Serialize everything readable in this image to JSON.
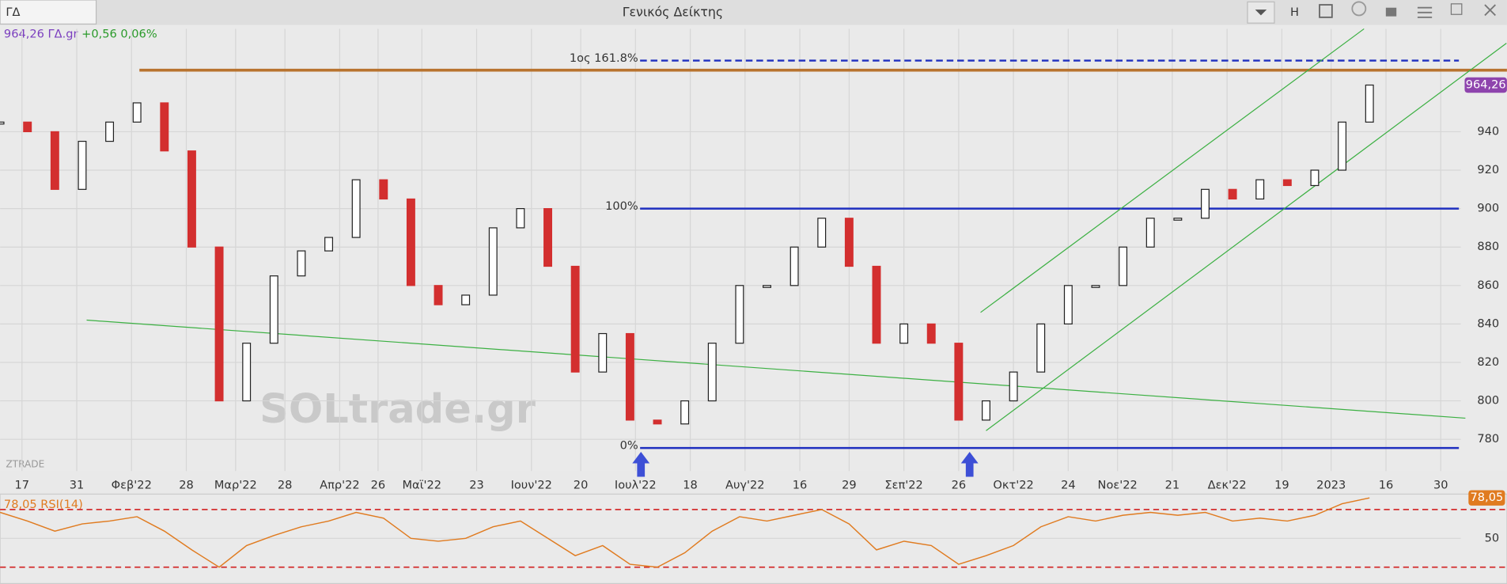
{
  "toolbar": {
    "symbol": "ΓΔ",
    "h": "H"
  },
  "watermark": "SOLtrade.gr",
  "brand": "ZTRADE",
  "chart_data": [
    {
      "type": "candlestick",
      "title": "Γενικός Δείκτης",
      "quote": {
        "name": "ΓΔ.gr",
        "change": "+0,56",
        "change_pct": "0,06%"
      },
      "x": [
        0,
        5,
        10,
        15,
        20,
        25,
        30,
        35,
        40,
        45,
        50,
        55,
        60,
        65,
        70,
        75,
        80,
        85,
        90,
        95,
        100,
        105,
        110,
        115,
        120,
        125,
        130,
        135,
        140,
        145,
        150,
        155,
        160,
        165,
        170,
        175,
        180,
        185,
        190,
        195,
        200,
        205,
        210,
        215,
        220,
        225,
        230,
        235,
        240,
        245,
        250
      ],
      "values": [
        945,
        940,
        910,
        935,
        945,
        955,
        930,
        880,
        800,
        830,
        865,
        878,
        885,
        915,
        905,
        860,
        850,
        855,
        890,
        900,
        870,
        815,
        835,
        790,
        788,
        800,
        830,
        860,
        860,
        880,
        895,
        870,
        830,
        840,
        830,
        790,
        800,
        815,
        840,
        860,
        860,
        880,
        895,
        895,
        910,
        905,
        915,
        912,
        920,
        945,
        964.26
      ],
      "value_labels": [
        null,
        null,
        null,
        null,
        null,
        null,
        null,
        null,
        null,
        null,
        null,
        null,
        null,
        null,
        null,
        null,
        null,
        null,
        null,
        null,
        null,
        null,
        null,
        null,
        null,
        null,
        null,
        null,
        null,
        null,
        null,
        null,
        null,
        null,
        null,
        null,
        null,
        null,
        null,
        null,
        null,
        null,
        null,
        null,
        null,
        null,
        null,
        null,
        null,
        null,
        "964,26"
      ],
      "up_color": "#ffffff",
      "down_color": "#d32f2f",
      "xlim": [
        0,
        275
      ],
      "ylim": [
        763.5,
        993.5
      ],
      "yticks": [
        780,
        800,
        820,
        840,
        860,
        880,
        900,
        920,
        940
      ],
      "xticks": [
        {
          "value": 4,
          "label": "17"
        },
        {
          "value": 14,
          "label": "31"
        },
        {
          "value": 24,
          "label": "Φεβ'22"
        },
        {
          "value": 34,
          "label": "28"
        },
        {
          "value": 43,
          "label": "Μαρ'22"
        },
        {
          "value": 52,
          "label": "28"
        },
        {
          "value": 62,
          "label": "Απρ'22"
        },
        {
          "value": 69,
          "label": "26"
        },
        {
          "value": 77,
          "label": "Μαϊ'22"
        },
        {
          "value": 87,
          "label": "23"
        },
        {
          "value": 97,
          "label": "Ιουν'22"
        },
        {
          "value": 106,
          "label": "20"
        },
        {
          "value": 116,
          "label": "Ιουλ'22"
        },
        {
          "value": 126,
          "label": "18"
        },
        {
          "value": 136,
          "label": "Αυγ'22"
        },
        {
          "value": 146,
          "label": "16"
        },
        {
          "value": 155,
          "label": "29"
        },
        {
          "value": 165,
          "label": "Σεπ'22"
        },
        {
          "value": 175,
          "label": "26"
        },
        {
          "value": 185,
          "label": "Οκτ'22"
        },
        {
          "value": 195,
          "label": "24"
        },
        {
          "value": 204,
          "label": "Νοε'22"
        },
        {
          "value": 214,
          "label": "21"
        },
        {
          "value": 224,
          "label": "Δεκ'22"
        },
        {
          "value": 234,
          "label": "19"
        },
        {
          "value": 243,
          "label": "2023"
        },
        {
          "value": 253,
          "label": "16"
        },
        {
          "value": 263,
          "label": "30"
        }
      ],
      "grid": true,
      "levels": [
        {
          "label": "1ος 161.8%",
          "value": 977,
          "style": "dashed"
        },
        {
          "label": "100%",
          "value": 900,
          "style": "solid"
        },
        {
          "label": "0%",
          "value": 775.5,
          "style": "solid"
        }
      ],
      "level_color": "#1f2fbf",
      "resistance": {
        "value": 972,
        "color": "#b8732f"
      },
      "trendlines": [
        {
          "x": [
            15.8,
            267.5
          ],
          "y": [
            842,
            791
          ]
        },
        {
          "x": [
            179,
            249
          ],
          "y": [
            846,
            993.5
          ]
        },
        {
          "x": [
            180,
            275
          ],
          "y": [
            784.5,
            986
          ]
        }
      ],
      "trend_color": "#3cb043",
      "arrows": [
        117,
        177
      ]
    },
    {
      "type": "line",
      "name": "RSI(14)",
      "x": [
        0,
        5,
        10,
        15,
        20,
        25,
        30,
        35,
        40,
        45,
        50,
        55,
        60,
        65,
        70,
        75,
        80,
        85,
        90,
        95,
        100,
        105,
        110,
        115,
        120,
        125,
        130,
        135,
        140,
        145,
        150,
        155,
        160,
        165,
        170,
        175,
        180,
        185,
        190,
        195,
        200,
        205,
        210,
        215,
        220,
        225,
        230,
        235,
        240,
        245,
        250
      ],
      "values": [
        68,
        62,
        55,
        60,
        62,
        65,
        55,
        42,
        30,
        45,
        52,
        58,
        62,
        68,
        64,
        50,
        48,
        50,
        58,
        62,
        50,
        38,
        45,
        32,
        30,
        40,
        55,
        65,
        62,
        66,
        70,
        60,
        42,
        48,
        45,
        32,
        38,
        45,
        58,
        65,
        62,
        66,
        68,
        66,
        68,
        62,
        64,
        62,
        66,
        74,
        78.05
      ],
      "value_labels": [
        null,
        null,
        null,
        null,
        null,
        null,
        null,
        null,
        null,
        null,
        null,
        null,
        null,
        null,
        null,
        null,
        null,
        null,
        null,
        null,
        null,
        null,
        null,
        null,
        null,
        null,
        null,
        null,
        null,
        null,
        null,
        null,
        null,
        null,
        null,
        null,
        null,
        null,
        null,
        null,
        null,
        null,
        null,
        null,
        null,
        null,
        null,
        null,
        null,
        null,
        "78,05"
      ],
      "color": "#e07b20",
      "xlim": [
        0,
        275
      ],
      "ylim": [
        20,
        80
      ],
      "yticks": [
        50
      ],
      "levels": [
        70,
        30
      ],
      "level_color": "#d32f2f"
    }
  ]
}
